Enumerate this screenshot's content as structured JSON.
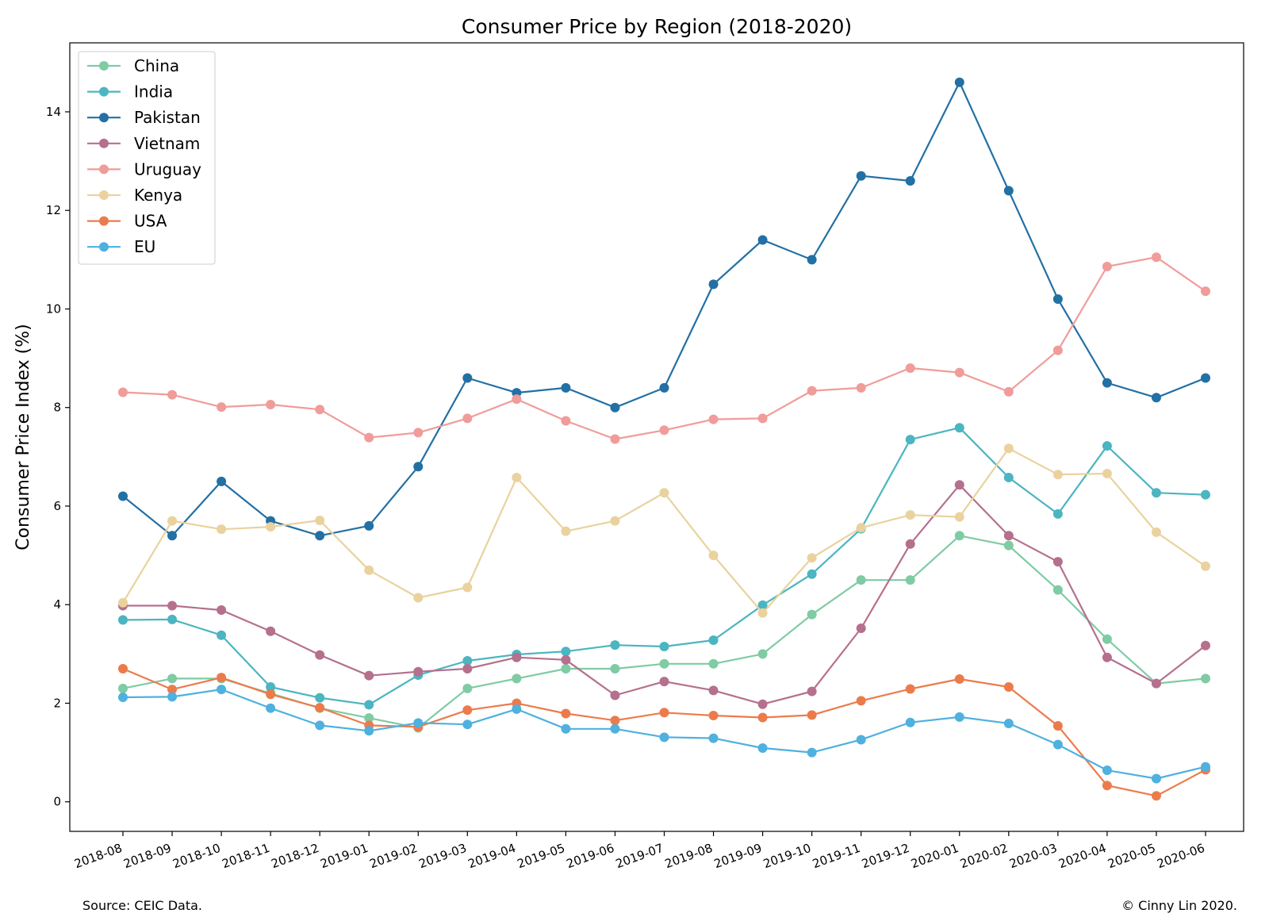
{
  "chart_data": {
    "type": "line",
    "title": "Consumer Price by Region (2018-2020)",
    "xlabel": "",
    "ylabel": "Consumer Price Index (%)",
    "ylim": [
      -0.6,
      15.4
    ],
    "yticks": [
      0,
      2,
      4,
      6,
      8,
      10,
      12,
      14
    ],
    "ytick_labels": [
      "0",
      "2",
      "4",
      "6",
      "8",
      "10",
      "12",
      "14"
    ],
    "categories": [
      "2018-08",
      "2018-09",
      "2018-10",
      "2018-11",
      "2018-12",
      "2019-01",
      "2019-02",
      "2019-03",
      "2019-04",
      "2019-05",
      "2019-06",
      "2019-07",
      "2019-08",
      "2019-09",
      "2019-10",
      "2019-11",
      "2019-12",
      "2020-01",
      "2020-02",
      "2020-03",
      "2020-04",
      "2020-05",
      "2020-06"
    ],
    "legend_position": "top-left",
    "grid": false,
    "series": [
      {
        "name": "China",
        "color": "#7fcba4",
        "values": [
          2.3,
          2.5,
          2.5,
          2.2,
          1.9,
          1.7,
          1.5,
          2.3,
          2.5,
          2.7,
          2.7,
          2.8,
          2.8,
          3.0,
          3.8,
          4.5,
          4.5,
          5.4,
          5.2,
          4.3,
          3.3,
          2.4,
          2.5
        ]
      },
      {
        "name": "India",
        "color": "#4bb5c1",
        "values": [
          3.69,
          3.7,
          3.38,
          2.33,
          2.11,
          1.97,
          2.57,
          2.86,
          2.99,
          3.05,
          3.18,
          3.15,
          3.28,
          3.99,
          4.62,
          5.54,
          7.35,
          7.59,
          6.58,
          5.84,
          7.22,
          6.27,
          6.23
        ]
      },
      {
        "name": "Pakistan",
        "color": "#2270a4",
        "values": [
          6.2,
          5.4,
          6.5,
          5.7,
          5.4,
          5.6,
          6.8,
          8.6,
          8.3,
          8.4,
          8.0,
          8.4,
          10.5,
          11.4,
          11.0,
          12.7,
          12.6,
          14.6,
          12.4,
          10.2,
          8.5,
          8.2,
          8.6
        ]
      },
      {
        "name": "Vietnam",
        "color": "#b5708d",
        "values": [
          3.98,
          3.98,
          3.89,
          3.46,
          2.98,
          2.56,
          2.64,
          2.7,
          2.93,
          2.88,
          2.16,
          2.44,
          2.26,
          1.98,
          2.24,
          3.52,
          5.23,
          6.43,
          5.4,
          4.87,
          2.93,
          2.4,
          3.17
        ]
      },
      {
        "name": "Uruguay",
        "color": "#f09c9a",
        "values": [
          8.31,
          8.26,
          8.01,
          8.06,
          7.96,
          7.39,
          7.49,
          7.78,
          8.17,
          7.73,
          7.36,
          7.54,
          7.76,
          7.78,
          8.34,
          8.4,
          8.8,
          8.71,
          8.32,
          9.16,
          10.86,
          11.05,
          10.36
        ]
      },
      {
        "name": "Kenya",
        "color": "#ead29e",
        "values": [
          4.04,
          5.7,
          5.53,
          5.58,
          5.71,
          4.7,
          4.14,
          4.35,
          6.58,
          5.49,
          5.7,
          6.27,
          5.0,
          3.83,
          4.95,
          5.56,
          5.82,
          5.78,
          7.17,
          6.64,
          6.66,
          5.47,
          4.78
        ]
      },
      {
        "name": "USA",
        "color": "#ec7b4c",
        "values": [
          2.7,
          2.28,
          2.52,
          2.18,
          1.91,
          1.55,
          1.52,
          1.86,
          2.0,
          1.79,
          1.65,
          1.81,
          1.75,
          1.71,
          1.76,
          2.05,
          2.29,
          2.49,
          2.33,
          1.54,
          0.33,
          0.12,
          0.65
        ]
      },
      {
        "name": "EU",
        "color": "#4eb1df",
        "values": [
          2.12,
          2.13,
          2.28,
          1.9,
          1.55,
          1.44,
          1.6,
          1.57,
          1.88,
          1.48,
          1.48,
          1.31,
          1.29,
          1.09,
          1.0,
          1.26,
          1.61,
          1.72,
          1.59,
          1.16,
          0.64,
          0.47,
          0.71
        ]
      }
    ]
  },
  "footer": {
    "source": "Source: CEIC Data.",
    "copyright": "© Cinny Lin 2020."
  }
}
